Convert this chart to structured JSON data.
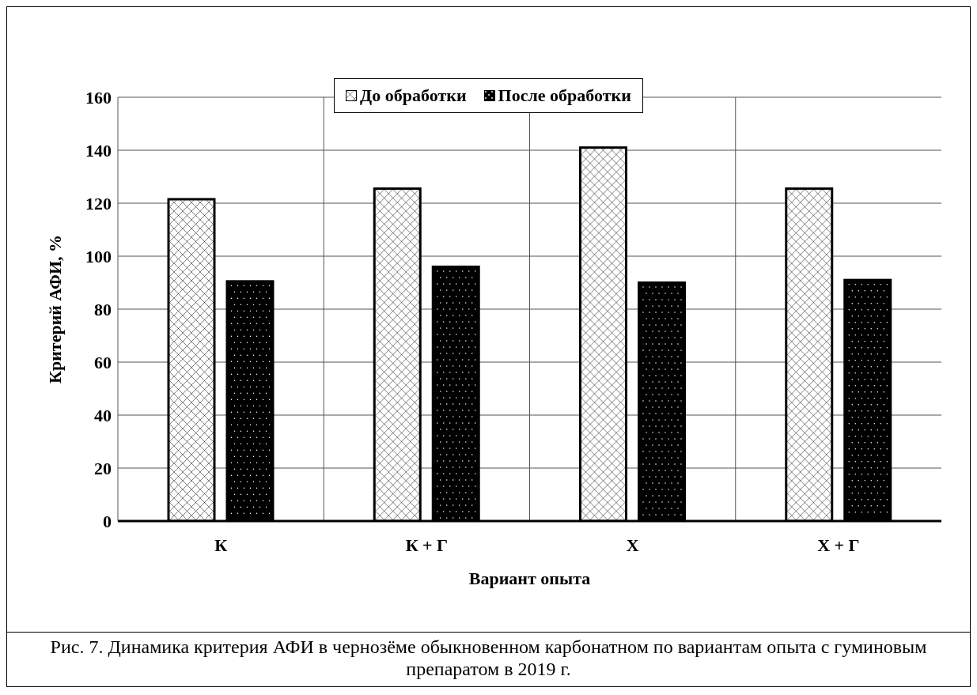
{
  "chart_data": {
    "type": "bar",
    "xlabel": "Вариант опыта",
    "ylabel": "Критерий АФИ, %",
    "categories": [
      "К",
      "К + Г",
      "Х",
      "Х + Г"
    ],
    "series": [
      {
        "name": "До обработки",
        "color": "#ffffff",
        "values": [
          121.5,
          125.5,
          141,
          125.5
        ]
      },
      {
        "name": "После обработки",
        "color": "#000000",
        "values": [
          90.5,
          96,
          90,
          91
        ]
      }
    ],
    "ylim": [
      0,
      160
    ],
    "yticks": [
      0,
      20,
      40,
      60,
      80,
      100,
      120,
      140,
      160
    ],
    "grid": true,
    "legend": "top",
    "annotations": [
      "Рис. 7. Динамика критерия АФИ в чернозёме обыкновенном карбонатном по вариантам опыта с гуминовым препаратом в 2019 г."
    ]
  }
}
